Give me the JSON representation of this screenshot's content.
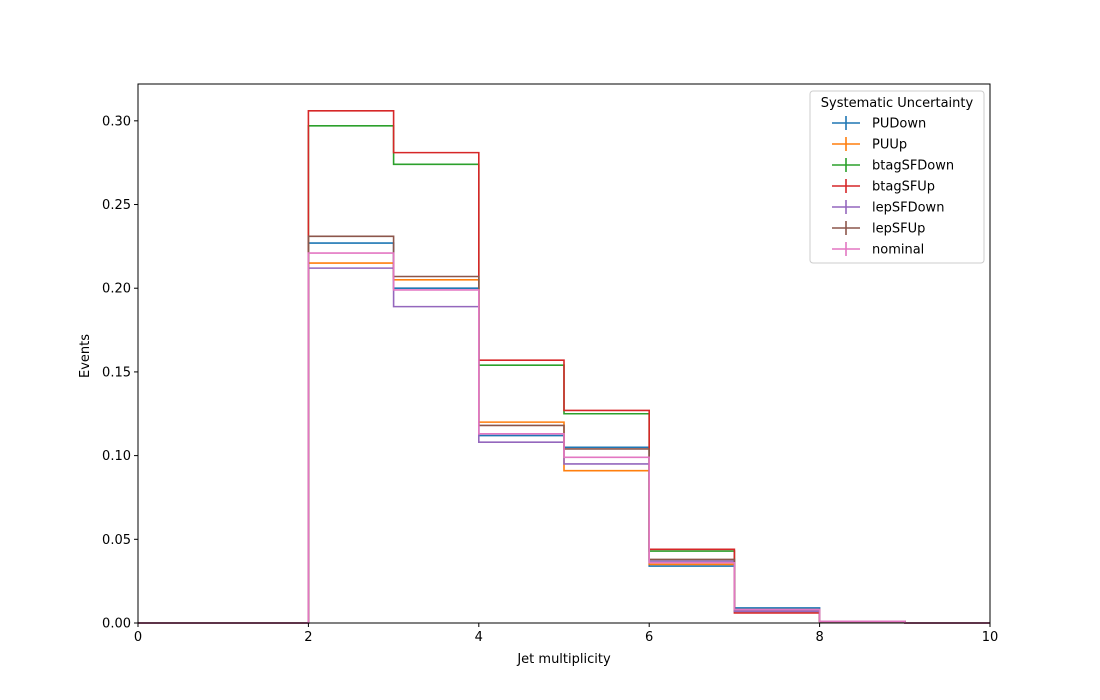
{
  "chart_data": {
    "type": "line",
    "title": "",
    "xlabel": "Jet multiplicity",
    "ylabel": "Events",
    "xlim": [
      0,
      10
    ],
    "ylim": [
      0,
      0.322
    ],
    "x_ticks": [
      "0",
      "2",
      "4",
      "6",
      "8",
      "10"
    ],
    "y_ticks": [
      "0.00",
      "0.05",
      "0.10",
      "0.15",
      "0.20",
      "0.25",
      "0.30"
    ],
    "grid": false,
    "legend": {
      "title": "Systematic Uncertainty",
      "placement": "top-right"
    },
    "bin_edges": [
      0,
      1,
      2,
      3,
      4,
      5,
      6,
      7,
      8,
      9,
      10
    ],
    "series": [
      {
        "name": "PUDown",
        "color": "#1f77b4",
        "values": [
          0,
          0,
          0.227,
          0.2,
          0.112,
          0.105,
          0.034,
          0.009,
          0.001,
          0
        ]
      },
      {
        "name": "PUUp",
        "color": "#ff7f0e",
        "values": [
          0,
          0,
          0.215,
          0.205,
          0.12,
          0.091,
          0.035,
          0.007,
          0.001,
          0
        ]
      },
      {
        "name": "btagSFDown",
        "color": "#2ca02c",
        "values": [
          0,
          0,
          0.297,
          0.274,
          0.154,
          0.125,
          0.043,
          0.007,
          0.001,
          0
        ]
      },
      {
        "name": "btagSFUp",
        "color": "#d62728",
        "values": [
          0,
          0,
          0.306,
          0.281,
          0.157,
          0.127,
          0.044,
          0.006,
          0.001,
          0
        ]
      },
      {
        "name": "lepSFDown",
        "color": "#9467bd",
        "values": [
          0,
          0,
          0.212,
          0.189,
          0.108,
          0.095,
          0.037,
          0.007,
          0.001,
          0
        ]
      },
      {
        "name": "lepSFUp",
        "color": "#8c564b",
        "values": [
          0,
          0,
          0.231,
          0.207,
          0.118,
          0.104,
          0.038,
          0.008,
          0.001,
          0
        ]
      },
      {
        "name": "nominal",
        "color": "#e377c2",
        "values": [
          0,
          0,
          0.221,
          0.199,
          0.113,
          0.099,
          0.036,
          0.008,
          0.001,
          0
        ]
      }
    ]
  }
}
